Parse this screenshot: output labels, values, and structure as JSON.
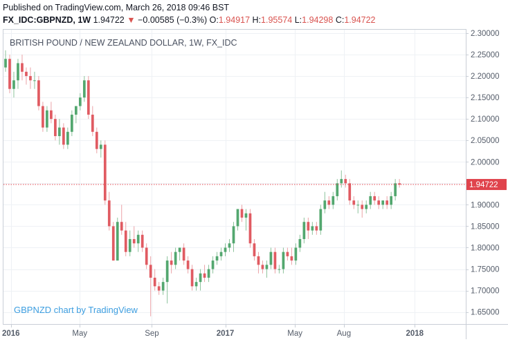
{
  "header": {
    "published": "Published on TradingView.com, March 26, 2018 09:46 BST",
    "symbol": "FX_IDC:GBPNZD, 1W",
    "last": "1.94722",
    "change_arrow": "▼",
    "change": "−0.00585 (−0.3%)",
    "o_label": "O:",
    "o_value": "1.94917",
    "h_label": "H:",
    "h_value": "1.95574",
    "l_label": "L:",
    "l_value": "1.94298",
    "c_label": "C:",
    "c_value": "1.94722"
  },
  "colors": {
    "up": "#53a76f",
    "down": "#e05b62",
    "wick_up": "#8cc29b",
    "wick_down": "#eba2a6",
    "last_price_line": "#e0434c",
    "grid": "#eef1f5",
    "axis_text": "#555d6a",
    "watermark": "#3d9ee0"
  },
  "chart_data": {
    "type": "candlestick",
    "title": "BRITISH POUND / NEW ZEALAND DOLLAR, 1W, FX_IDC",
    "watermark": "GBPNZD chart by TradingView",
    "y_ticks": [
      "2.30000",
      "2.25000",
      "2.20000",
      "2.15000",
      "2.10000",
      "2.05000",
      "2.00000",
      "1.95000",
      "1.90000",
      "1.85000",
      "1.80000",
      "1.75000",
      "1.70000",
      "1.65000"
    ],
    "y_tick_values": [
      2.3,
      2.25,
      2.2,
      2.15,
      2.1,
      2.05,
      2.0,
      1.95,
      1.9,
      1.85,
      1.8,
      1.75,
      1.7,
      1.65
    ],
    "ylim": [
      1.622,
      2.308
    ],
    "x_labels": [
      "2016",
      "May",
      "Sep",
      "2017",
      "May",
      "Aug",
      "2018"
    ],
    "x_label_weeks": [
      1.3,
      17.9,
      35.3,
      53.0,
      69.8,
      81.6,
      98.7
    ],
    "xlim": [
      -0.5,
      111
    ],
    "last_price": 1.94722,
    "last_price_label": "1.94722",
    "grid": true,
    "candles": [
      [
        2.22,
        2.26,
        2.21,
        2.24
      ],
      [
        2.24,
        2.25,
        2.16,
        2.17
      ],
      [
        2.17,
        2.21,
        2.15,
        2.19
      ],
      [
        2.19,
        2.24,
        2.17,
        2.23
      ],
      [
        2.23,
        2.25,
        2.19,
        2.21
      ],
      [
        2.21,
        2.22,
        2.18,
        2.2
      ],
      [
        2.2,
        2.22,
        2.17,
        2.19
      ],
      [
        2.19,
        2.21,
        2.17,
        2.19
      ],
      [
        2.19,
        2.2,
        2.12,
        2.13
      ],
      [
        2.13,
        2.14,
        2.07,
        2.08
      ],
      [
        2.08,
        2.13,
        2.07,
        2.12
      ],
      [
        2.12,
        2.14,
        2.09,
        2.1
      ],
      [
        2.1,
        2.11,
        2.05,
        2.06
      ],
      [
        2.06,
        2.1,
        2.04,
        2.08
      ],
      [
        2.08,
        2.09,
        2.03,
        2.04
      ],
      [
        2.04,
        2.08,
        2.03,
        2.07
      ],
      [
        2.07,
        2.12,
        2.06,
        2.11
      ],
      [
        2.11,
        2.13,
        2.09,
        2.13
      ],
      [
        2.13,
        2.16,
        2.12,
        2.15
      ],
      [
        2.15,
        2.2,
        2.14,
        2.19
      ],
      [
        2.19,
        2.2,
        2.1,
        2.11
      ],
      [
        2.11,
        2.13,
        2.06,
        2.07
      ],
      [
        2.07,
        2.08,
        2.02,
        2.03
      ],
      [
        2.03,
        2.05,
        2.01,
        2.04
      ],
      [
        2.04,
        2.05,
        1.9,
        1.91
      ],
      [
        1.91,
        1.93,
        1.84,
        1.85
      ],
      [
        1.85,
        1.86,
        1.77,
        1.77
      ],
      [
        1.77,
        1.87,
        1.77,
        1.86
      ],
      [
        1.86,
        1.9,
        1.83,
        1.84
      ],
      [
        1.84,
        1.86,
        1.78,
        1.79
      ],
      [
        1.79,
        1.84,
        1.78,
        1.82
      ],
      [
        1.82,
        1.85,
        1.8,
        1.81
      ],
      [
        1.81,
        1.84,
        1.79,
        1.83
      ],
      [
        1.83,
        1.84,
        1.79,
        1.8
      ],
      [
        1.8,
        1.81,
        1.75,
        1.76
      ],
      [
        1.76,
        1.78,
        1.64,
        1.73
      ],
      [
        1.73,
        1.75,
        1.7,
        1.71
      ],
      [
        1.71,
        1.72,
        1.69,
        1.7
      ],
      [
        1.7,
        1.73,
        1.69,
        1.72
      ],
      [
        1.72,
        1.78,
        1.67,
        1.77
      ],
      [
        1.77,
        1.79,
        1.74,
        1.76
      ],
      [
        1.76,
        1.8,
        1.75,
        1.79
      ],
      [
        1.79,
        1.8,
        1.77,
        1.8
      ],
      [
        1.8,
        1.81,
        1.76,
        1.77
      ],
      [
        1.77,
        1.78,
        1.74,
        1.75
      ],
      [
        1.75,
        1.76,
        1.7,
        1.71
      ],
      [
        1.71,
        1.73,
        1.7,
        1.72
      ],
      [
        1.72,
        1.75,
        1.7,
        1.74
      ],
      [
        1.74,
        1.76,
        1.72,
        1.73
      ],
      [
        1.73,
        1.76,
        1.72,
        1.75
      ],
      [
        1.75,
        1.78,
        1.74,
        1.77
      ],
      [
        1.77,
        1.79,
        1.76,
        1.78
      ],
      [
        1.78,
        1.8,
        1.77,
        1.79
      ],
      [
        1.79,
        1.81,
        1.78,
        1.8
      ],
      [
        1.8,
        1.82,
        1.79,
        1.81
      ],
      [
        1.81,
        1.86,
        1.79,
        1.85
      ],
      [
        1.85,
        1.89,
        1.84,
        1.89
      ],
      [
        1.89,
        1.9,
        1.86,
        1.87
      ],
      [
        1.87,
        1.89,
        1.84,
        1.88
      ],
      [
        1.88,
        1.89,
        1.8,
        1.81
      ],
      [
        1.81,
        1.82,
        1.77,
        1.78
      ],
      [
        1.78,
        1.79,
        1.74,
        1.76
      ],
      [
        1.76,
        1.77,
        1.74,
        1.75
      ],
      [
        1.75,
        1.77,
        1.73,
        1.76
      ],
      [
        1.76,
        1.8,
        1.75,
        1.79
      ],
      [
        1.79,
        1.8,
        1.74,
        1.75
      ],
      [
        1.75,
        1.76,
        1.74,
        1.75
      ],
      [
        1.75,
        1.8,
        1.74,
        1.79
      ],
      [
        1.79,
        1.8,
        1.77,
        1.78
      ],
      [
        1.78,
        1.8,
        1.76,
        1.77
      ],
      [
        1.77,
        1.81,
        1.76,
        1.8
      ],
      [
        1.8,
        1.83,
        1.79,
        1.82
      ],
      [
        1.82,
        1.87,
        1.81,
        1.86
      ],
      [
        1.86,
        1.87,
        1.82,
        1.84
      ],
      [
        1.84,
        1.86,
        1.83,
        1.85
      ],
      [
        1.85,
        1.86,
        1.83,
        1.84
      ],
      [
        1.84,
        1.9,
        1.83,
        1.89
      ],
      [
        1.89,
        1.93,
        1.88,
        1.91
      ],
      [
        1.91,
        1.92,
        1.89,
        1.9
      ],
      [
        1.9,
        1.93,
        1.89,
        1.92
      ],
      [
        1.92,
        1.96,
        1.91,
        1.95
      ],
      [
        1.95,
        1.98,
        1.94,
        1.96
      ],
      [
        1.96,
        1.97,
        1.94,
        1.95
      ],
      [
        1.95,
        1.96,
        1.9,
        1.91
      ],
      [
        1.91,
        1.92,
        1.89,
        1.9
      ],
      [
        1.9,
        1.91,
        1.88,
        1.9
      ],
      [
        1.9,
        1.91,
        1.87,
        1.89
      ],
      [
        1.89,
        1.91,
        1.88,
        1.9
      ],
      [
        1.9,
        1.93,
        1.89,
        1.92
      ],
      [
        1.92,
        1.93,
        1.9,
        1.91
      ],
      [
        1.91,
        1.92,
        1.89,
        1.9
      ],
      [
        1.9,
        1.91,
        1.89,
        1.91
      ],
      [
        1.91,
        1.92,
        1.89,
        1.9
      ],
      [
        1.9,
        1.93,
        1.89,
        1.92
      ],
      [
        1.92,
        1.96,
        1.91,
        1.95
      ],
      [
        1.95,
        1.96,
        1.94,
        1.947
      ]
    ]
  }
}
